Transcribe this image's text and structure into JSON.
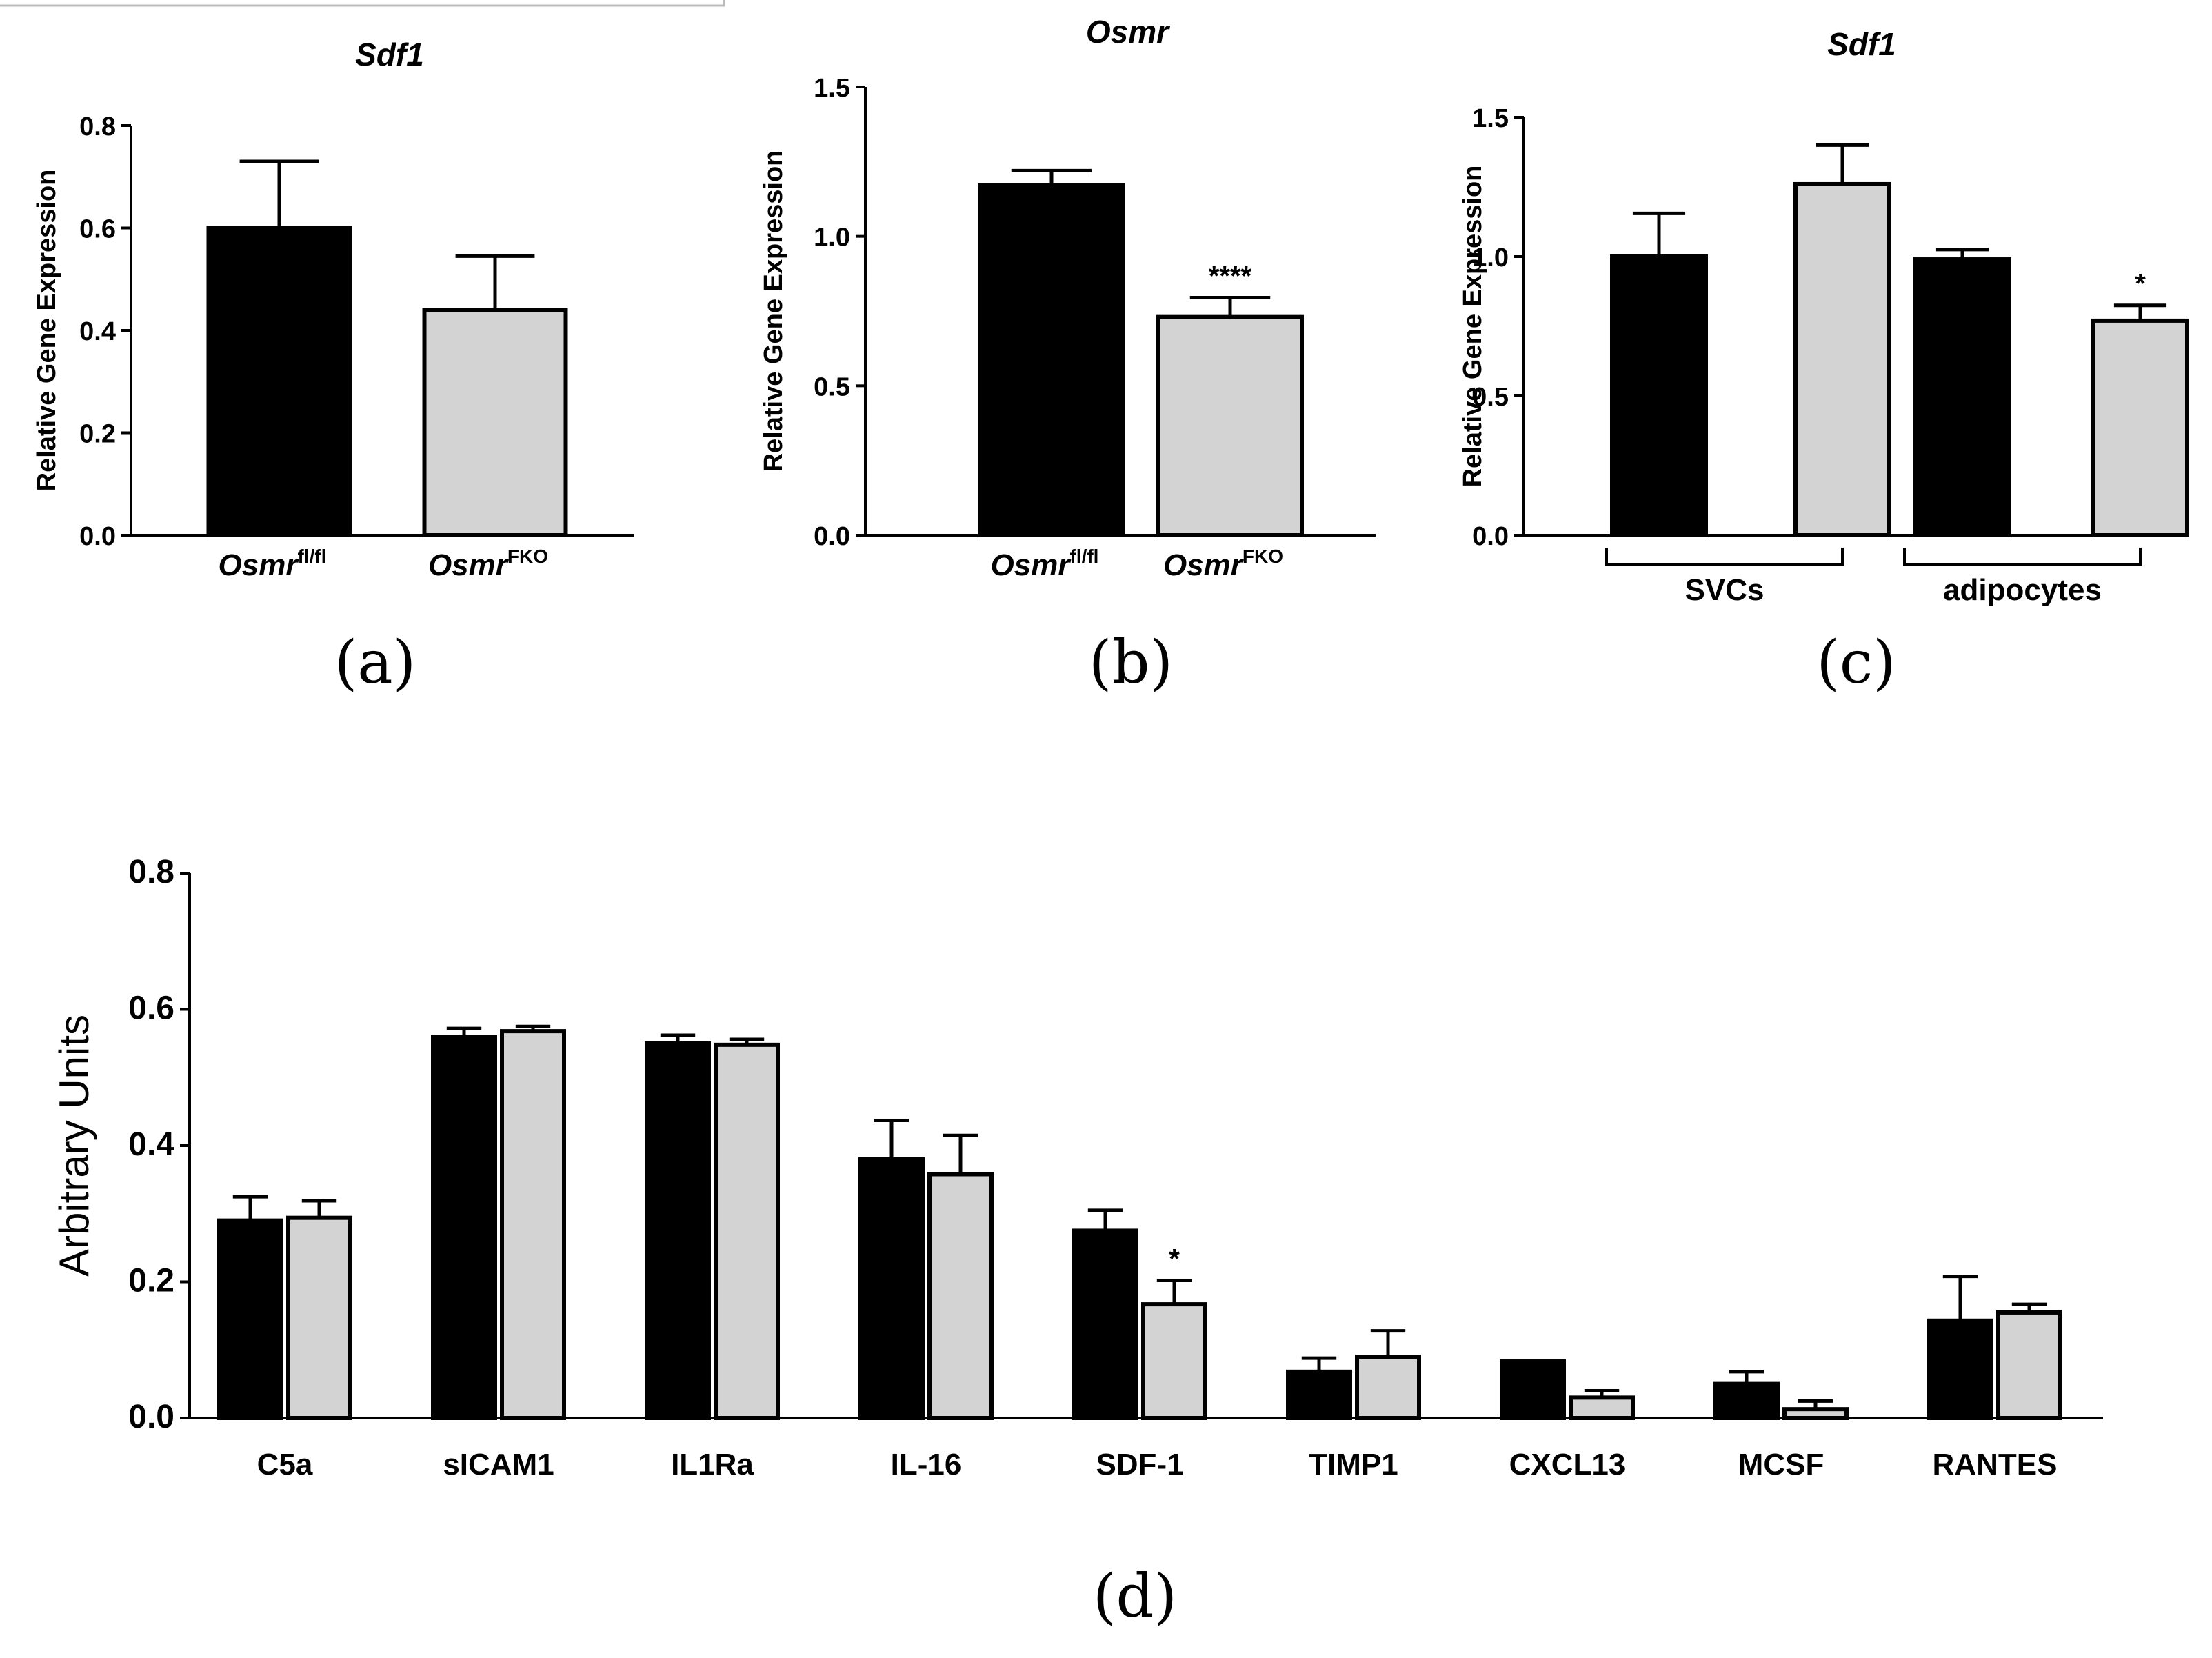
{
  "colors": {
    "bar_black": "#000000",
    "bar_grey": "#d3d3d3",
    "axis": "#000000"
  },
  "chart_data": [
    {
      "id": "a",
      "type": "bar",
      "panel_label": "(a)",
      "title": "Sdf1",
      "ylabel": "Relative Gene Expression",
      "xlabel": "",
      "ylim": [
        0,
        0.8
      ],
      "yticks": [
        "0.0",
        "0.2",
        "0.4",
        "0.6",
        "0.8"
      ],
      "ytick_values": [
        0,
        0.2,
        0.4,
        0.6,
        0.8
      ],
      "categories": [
        {
          "base": "Osmr",
          "sup": "fl/fl"
        },
        {
          "base": "Osmr",
          "sup": "FKO"
        }
      ],
      "values": [
        0.6,
        0.44
      ],
      "errors": [
        0.13,
        0.105
      ],
      "fills": [
        "black",
        "grey"
      ],
      "significance": [
        "",
        ""
      ]
    },
    {
      "id": "b",
      "type": "bar",
      "panel_label": "(b)",
      "title": "Osmr",
      "ylabel": "Relative Gene Expression",
      "xlabel": "",
      "ylim": [
        0,
        1.5
      ],
      "yticks": [
        "0.0",
        "0.5",
        "1.0",
        "1.5"
      ],
      "ytick_values": [
        0,
        0.5,
        1.0,
        1.5
      ],
      "categories": [
        {
          "base": "Osmr",
          "sup": "fl/fl"
        },
        {
          "base": "Osmr",
          "sup": "FKO"
        }
      ],
      "values": [
        1.17,
        0.73
      ],
      "errors": [
        0.05,
        0.065
      ],
      "fills": [
        "black",
        "grey"
      ],
      "significance": [
        "",
        "****"
      ]
    },
    {
      "id": "c",
      "type": "bar",
      "panel_label": "(c)",
      "title": "Sdf1",
      "ylabel": "Relative Gene Expression",
      "xlabel": "",
      "ylim": [
        0,
        1.5
      ],
      "yticks": [
        "0.0",
        "0.5",
        "1.0",
        "1.5"
      ],
      "ytick_values": [
        0,
        0.5,
        1.0,
        1.5
      ],
      "groups": [
        "SVCs",
        "adipocytes"
      ],
      "values": [
        1.0,
        1.26,
        0.99,
        0.77
      ],
      "errors": [
        0.155,
        0.14,
        0.035,
        0.055
      ],
      "fills": [
        "black",
        "grey",
        "black",
        "grey"
      ],
      "significance": [
        "",
        "",
        "",
        "*"
      ]
    },
    {
      "id": "d",
      "type": "bar",
      "panel_label": "(d)",
      "title": "",
      "ylabel": "Arbitrary Units",
      "xlabel": "",
      "ylim": [
        0,
        0.8
      ],
      "yticks": [
        "0.0",
        "0.2",
        "0.4",
        "0.6",
        "0.8"
      ],
      "ytick_values": [
        0,
        0.2,
        0.4,
        0.6,
        0.8
      ],
      "categories": [
        "C5a",
        "sICAM1",
        "IL1Ra",
        "IL-16",
        "SDF-1",
        "TIMP1",
        "CXCL13",
        "MCSF",
        "RANTES"
      ],
      "series": [
        {
          "name": "black",
          "fill": "black",
          "values": [
            0.29,
            0.56,
            0.55,
            0.38,
            0.275,
            0.068,
            0.083,
            0.05,
            0.143
          ],
          "errors": [
            0.035,
            0.012,
            0.012,
            0.057,
            0.03,
            0.02,
            0,
            0.018,
            0.065
          ]
        },
        {
          "name": "grey",
          "fill": "grey",
          "values": [
            0.294,
            0.568,
            0.548,
            0.358,
            0.167,
            0.09,
            0.03,
            0.013,
            0.155
          ],
          "errors": [
            0.025,
            0.007,
            0.008,
            0.057,
            0.035,
            0.038,
            0.01,
            0.012,
            0.012
          ]
        }
      ],
      "significance": [
        "",
        "",
        "",
        "",
        "*",
        "",
        "",
        "",
        ""
      ]
    }
  ]
}
